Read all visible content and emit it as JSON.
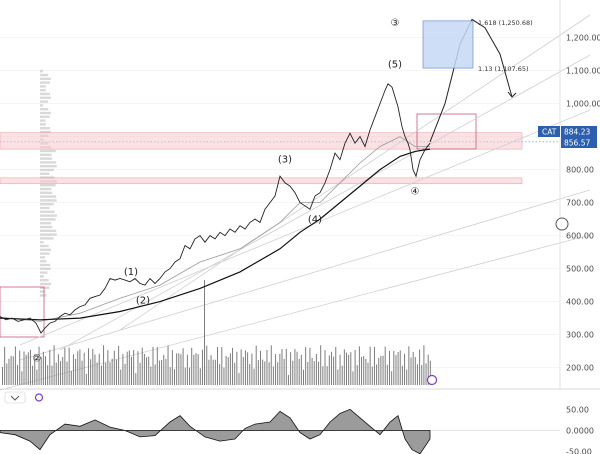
{
  "chart_data": {
    "type": "line",
    "ticker": "CAT",
    "y_axis": {
      "ticks": [
        "1,200.00",
        "1,100.00",
        "1,000.00",
        "900.00",
        "800.00",
        "700.00",
        "600.00",
        "500.00",
        "400.00",
        "300.00",
        "200.00"
      ],
      "tick_values": [
        1200,
        1100,
        1000,
        900,
        800,
        700,
        600,
        500,
        400,
        300,
        200
      ],
      "ylim": [
        130,
        1265
      ]
    },
    "oscillator_axis": {
      "ticks": [
        "50.00",
        "0.0000",
        "-50.00"
      ]
    },
    "price_tags": {
      "last": "884.23",
      "second": "856.57"
    },
    "fib_labels": {
      "upper": "1.618 (1,250.68)",
      "lower": "1.13 (1,107.65)"
    },
    "wave_labels": [
      {
        "text": "(1)",
        "price": 480
      },
      {
        "text": "(2)",
        "price": 395
      },
      {
        "text": "(3)",
        "price": 822
      },
      {
        "text": "(4)",
        "price": 640
      },
      {
        "text": "(5)",
        "price": 1110
      },
      {
        "text": "③",
        "price": 1235
      },
      {
        "text": "②",
        "price": 218
      },
      {
        "text": "④",
        "price": 725
      }
    ],
    "zones": [
      {
        "name": "resistance-zone-upper",
        "from": 862,
        "to": 912
      },
      {
        "name": "resistance-zone-lower",
        "from": 757,
        "to": 775
      }
    ],
    "fib_box": {
      "from": 1107.65,
      "to": 1250.68
    },
    "price_series": {
      "x": [
        0,
        6,
        12,
        18,
        24,
        30,
        36,
        41,
        45,
        50,
        55,
        60,
        65,
        70,
        75,
        80,
        85,
        90,
        95,
        100,
        105,
        110,
        115,
        120,
        125,
        130,
        135,
        140,
        145,
        150,
        155,
        160,
        165,
        170,
        175,
        180,
        185,
        190,
        195,
        200,
        205,
        210,
        215,
        220,
        225,
        230,
        235,
        240,
        245,
        250,
        255,
        260,
        265,
        270,
        275,
        280,
        285,
        290,
        295,
        300,
        305,
        310,
        315,
        320,
        325,
        330,
        335,
        340,
        345,
        350,
        355,
        360,
        365,
        370,
        375,
        380,
        385,
        388,
        392,
        395,
        398,
        402,
        405,
        408,
        410,
        413,
        416,
        420,
        425,
        430
      ],
      "values": [
        355,
        345,
        350,
        340,
        345,
        350,
        335,
        305,
        320,
        335,
        340,
        355,
        365,
        360,
        375,
        385,
        390,
        410,
        415,
        420,
        440,
        470,
        465,
        470,
        465,
        460,
        470,
        455,
        450,
        470,
        455,
        470,
        490,
        500,
        520,
        530,
        570,
        560,
        590,
        600,
        580,
        600,
        590,
        610,
        600,
        620,
        610,
        630,
        620,
        640,
        650,
        640,
        680,
        700,
        720,
        780,
        760,
        750,
        730,
        700,
        690,
        680,
        720,
        730,
        760,
        800,
        850,
        830,
        880,
        910,
        880,
        900,
        870,
        920,
        960,
        1000,
        1040,
        1060,
        1050,
        1020,
        990,
        930,
        900,
        880,
        860,
        800,
        780,
        830,
        860,
        880
      ],
      "range": [
        0,
        430
      ]
    },
    "ma_series": {
      "x": [
        0,
        40,
        80,
        120,
        160,
        200,
        240,
        280,
        300,
        320,
        340,
        360,
        380,
        400,
        415,
        430
      ],
      "values": [
        350,
        345,
        350,
        370,
        400,
        440,
        490,
        560,
        610,
        650,
        700,
        750,
        800,
        840,
        855,
        862
      ]
    },
    "ma_fast_series": {
      "x": [
        0,
        40,
        80,
        120,
        160,
        200,
        240,
        280,
        300,
        320,
        340,
        360,
        380,
        400,
        415,
        430
      ],
      "values": [
        352,
        340,
        365,
        410,
        450,
        520,
        560,
        640,
        700,
        700,
        760,
        820,
        870,
        900,
        870,
        870
      ]
    },
    "projection": {
      "x": [
        430,
        445,
        460,
        472,
        485,
        500,
        512
      ],
      "values": [
        884,
        1000,
        1180,
        1255,
        1230,
        1150,
        1020
      ]
    },
    "oscillator": {
      "x": [
        0,
        15,
        30,
        40,
        50,
        65,
        80,
        95,
        110,
        125,
        140,
        155,
        170,
        180,
        190,
        205,
        220,
        235,
        245,
        255,
        270,
        280,
        290,
        300,
        310,
        320,
        330,
        340,
        350,
        360,
        370,
        380,
        390,
        398,
        405,
        412,
        420,
        430
      ],
      "values": [
        -5,
        -10,
        -25,
        -45,
        -10,
        15,
        10,
        25,
        8,
        0,
        -15,
        -12,
        20,
        35,
        10,
        -15,
        -25,
        -20,
        5,
        15,
        20,
        45,
        30,
        -5,
        -20,
        -10,
        20,
        40,
        50,
        30,
        10,
        -10,
        20,
        35,
        -20,
        -45,
        -55,
        -20
      ]
    }
  }
}
